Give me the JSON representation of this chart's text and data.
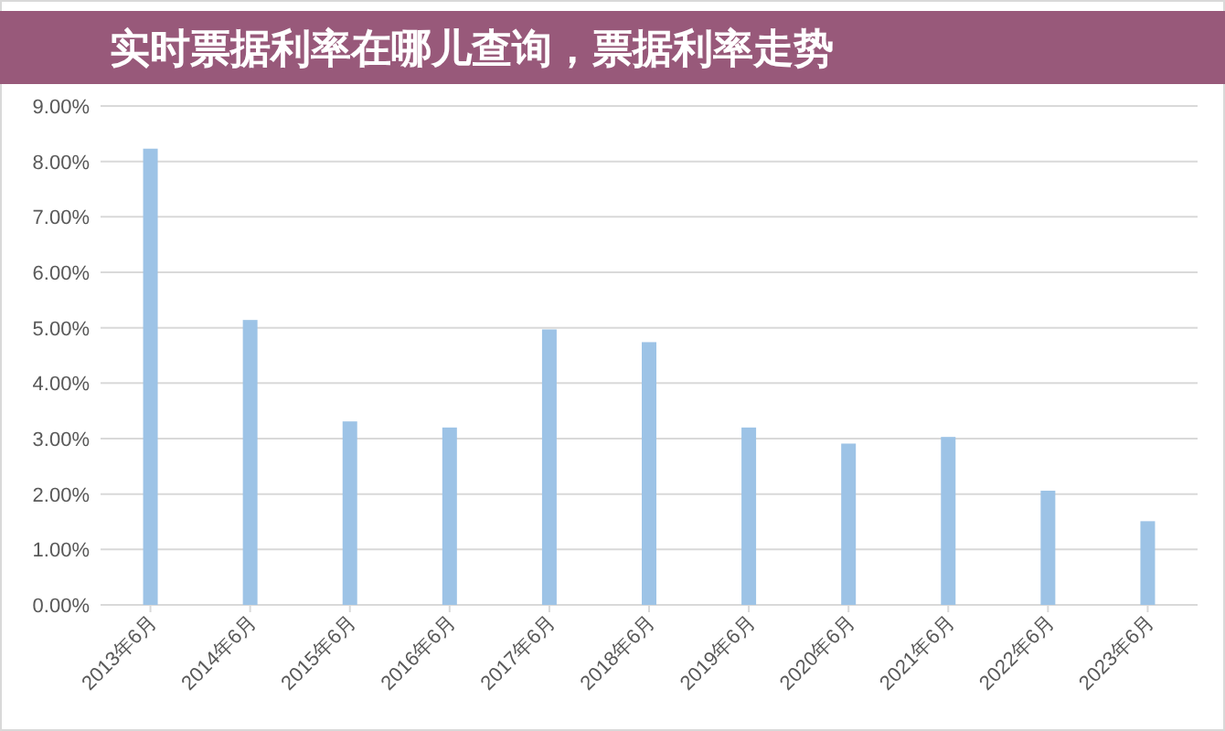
{
  "chart_data": {
    "type": "bar",
    "title": "实时票据利率在哪儿查询，票据利率走势",
    "categories": [
      "2013年6月",
      "2014年6月",
      "2015年6月",
      "2016年6月",
      "2017年6月",
      "2018年6月",
      "2019年6月",
      "2020年6月",
      "2021年6月",
      "2022年6月",
      "2023年6月"
    ],
    "values": [
      8.23,
      5.14,
      3.31,
      3.2,
      4.97,
      4.74,
      3.2,
      2.91,
      3.03,
      2.06,
      1.51
    ],
    "color": "#9dc3e6",
    "ylim": [
      0,
      9
    ],
    "yticks": [
      {
        "value": 0,
        "label": "0.00%"
      },
      {
        "value": 1,
        "label": "1.00%"
      },
      {
        "value": 2,
        "label": "2.00%"
      },
      {
        "value": 3,
        "label": "3.00%"
      },
      {
        "value": 4,
        "label": "4.00%"
      },
      {
        "value": 5,
        "label": "5.00%"
      },
      {
        "value": 6,
        "label": "6.00%"
      },
      {
        "value": 7,
        "label": "7.00%"
      },
      {
        "value": 8,
        "label": "8.00%"
      },
      {
        "value": 9,
        "label": "9.00%"
      }
    ],
    "grid": "y"
  }
}
